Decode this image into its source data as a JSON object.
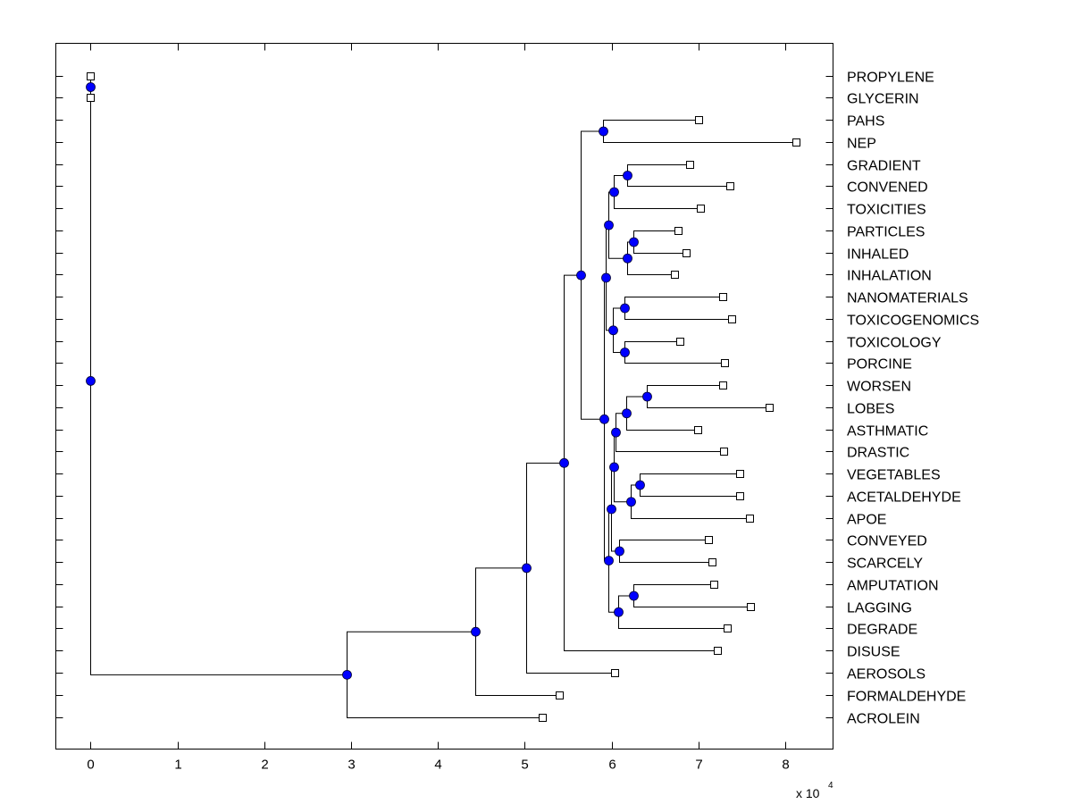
{
  "chart_data": {
    "type": "dendrogram",
    "title": "",
    "xlabel": "",
    "ylabel": "",
    "x_multiplier_label": "x 10",
    "x_multiplier_exponent": "4",
    "xlim": [
      -0.4,
      8.55
    ],
    "xticks": [
      0,
      1,
      2,
      3,
      4,
      5,
      6,
      7,
      8
    ],
    "xtick_labels": [
      "0",
      "1",
      "2",
      "3",
      "4",
      "5",
      "6",
      "7",
      "8"
    ],
    "grid": false,
    "colors": {
      "internal_node": "#0000ff",
      "leaf_node": "#ffffff",
      "line": "#000000"
    },
    "leaves": [
      {
        "name": "PROPYLENE",
        "value": 0.0
      },
      {
        "name": "GLYCERIN",
        "value": 0.0
      },
      {
        "name": "PAHS",
        "value": 7.0
      },
      {
        "name": "NEP",
        "value": 8.12
      },
      {
        "name": "GRADIENT",
        "value": 6.9
      },
      {
        "name": "CONVENED",
        "value": 7.36
      },
      {
        "name": "TOXICITIES",
        "value": 7.02
      },
      {
        "name": "PARTICLES",
        "value": 6.77
      },
      {
        "name": "INHALED",
        "value": 6.86
      },
      {
        "name": "INHALATION",
        "value": 6.72
      },
      {
        "name": "NANOMATERIALS",
        "value": 7.28
      },
      {
        "name": "TOXICOGENOMICS",
        "value": 7.38
      },
      {
        "name": "TOXICOLOGY",
        "value": 6.79
      },
      {
        "name": "PORCINE",
        "value": 7.3
      },
      {
        "name": "WORSEN",
        "value": 7.28
      },
      {
        "name": "LOBES",
        "value": 7.81
      },
      {
        "name": "ASTHMATIC",
        "value": 6.99
      },
      {
        "name": "DRASTIC",
        "value": 7.29
      },
      {
        "name": "VEGETABLES",
        "value": 7.47
      },
      {
        "name": "ACETALDEHYDE",
        "value": 7.48
      },
      {
        "name": "APOE",
        "value": 7.59
      },
      {
        "name": "CONVEYED",
        "value": 7.11
      },
      {
        "name": "SCARCELY",
        "value": 7.16
      },
      {
        "name": "AMPUTATION",
        "value": 7.18
      },
      {
        "name": "LAGGING",
        "value": 7.6
      },
      {
        "name": "DEGRADE",
        "value": 7.33
      },
      {
        "name": "DISUSE",
        "value": 7.22
      },
      {
        "name": "AEROSOLS",
        "value": 6.03
      },
      {
        "name": "FORMALDEHYDE",
        "value": 5.4
      },
      {
        "name": "ACROLEIN",
        "value": 5.2
      }
    ],
    "internal_nodes": [
      {
        "id": "root",
        "value": 0.0,
        "children": [
          "pg",
          "a"
        ]
      },
      {
        "id": "pg",
        "value": 0.0,
        "children": [
          "PROPYLENE",
          "GLYCERIN"
        ]
      },
      {
        "id": "a",
        "value": 2.95,
        "children": [
          "b",
          "ACROLEIN"
        ]
      },
      {
        "id": "b",
        "value": 4.43,
        "children": [
          "c",
          "FORMALDEHYDE"
        ]
      },
      {
        "id": "c",
        "value": 5.02,
        "children": [
          "d",
          "AEROSOLS"
        ]
      },
      {
        "id": "d",
        "value": 5.45,
        "children": [
          "e",
          "DISUSE"
        ]
      },
      {
        "id": "e",
        "value": 5.64,
        "children": [
          "f",
          "g"
        ]
      },
      {
        "id": "f",
        "value": 5.9,
        "children": [
          "PAHS",
          "NEP"
        ]
      },
      {
        "id": "g",
        "value": 5.91,
        "children": [
          "h",
          "i"
        ]
      },
      {
        "id": "h",
        "value": 5.93,
        "children": [
          "j",
          "k"
        ]
      },
      {
        "id": "j",
        "value": 5.96,
        "children": [
          "l",
          "m"
        ]
      },
      {
        "id": "l",
        "value": 6.02,
        "children": [
          "n",
          "TOXICITIES"
        ]
      },
      {
        "id": "n",
        "value": 6.18,
        "children": [
          "GRADIENT",
          "CONVENED"
        ]
      },
      {
        "id": "m",
        "value": 6.18,
        "children": [
          "o",
          "INHALATION"
        ]
      },
      {
        "id": "o",
        "value": 6.25,
        "children": [
          "PARTICLES",
          "INHALED"
        ]
      },
      {
        "id": "k",
        "value": 6.01,
        "children": [
          "p",
          "q"
        ]
      },
      {
        "id": "p",
        "value": 6.15,
        "children": [
          "NANOMATERIALS",
          "TOXICOGENOMICS"
        ]
      },
      {
        "id": "q",
        "value": 6.15,
        "children": [
          "TOXICOLOGY",
          "PORCINE"
        ]
      },
      {
        "id": "i",
        "value": 5.96,
        "children": [
          "r",
          "s"
        ]
      },
      {
        "id": "r",
        "value": 5.99,
        "children": [
          "t",
          "u"
        ]
      },
      {
        "id": "t",
        "value": 6.02,
        "children": [
          "v",
          "w"
        ]
      },
      {
        "id": "v",
        "value": 6.05,
        "children": [
          "x",
          "DRASTIC"
        ]
      },
      {
        "id": "x",
        "value": 6.17,
        "children": [
          "y",
          "ASTHMATIC"
        ]
      },
      {
        "id": "y",
        "value": 6.4,
        "children": [
          "WORSEN",
          "LOBES"
        ]
      },
      {
        "id": "w",
        "value": 6.22,
        "children": [
          "z",
          "APOE"
        ]
      },
      {
        "id": "z",
        "value": 6.32,
        "children": [
          "VEGETABLES",
          "ACETALDEHYDE"
        ]
      },
      {
        "id": "u",
        "value": 6.09,
        "children": [
          "CONVEYED",
          "SCARCELY"
        ]
      },
      {
        "id": "s",
        "value": 6.08,
        "children": [
          "aa",
          "DEGRADE"
        ]
      },
      {
        "id": "aa",
        "value": 6.25,
        "children": [
          "AMPUTATION",
          "LAGGING"
        ]
      }
    ]
  }
}
